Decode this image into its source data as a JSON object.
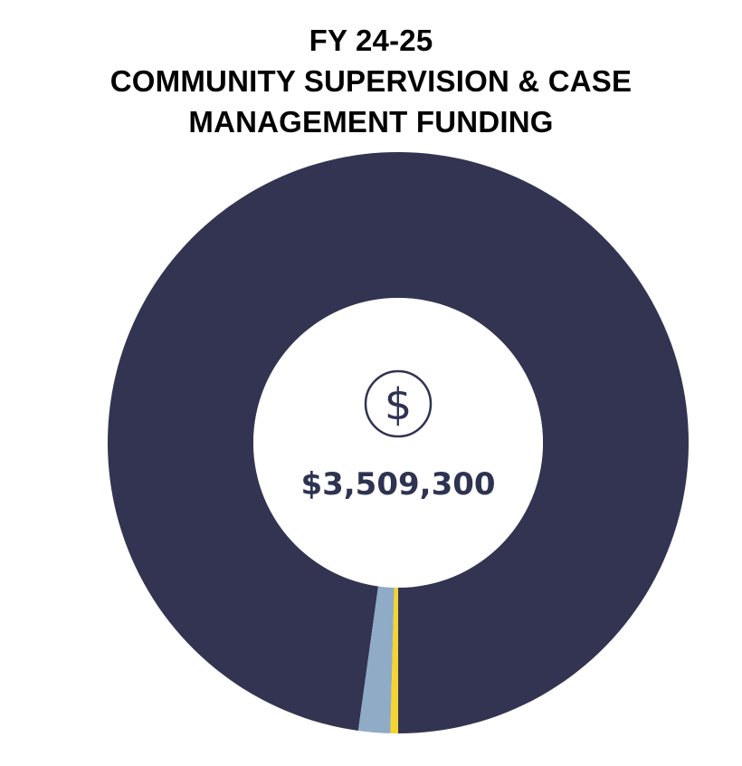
{
  "title": {
    "line1": "FY 24-25",
    "line2": "COMMUNITY SUPERVISION & CASE",
    "line3": "MANAGEMENT FUNDING"
  },
  "center": {
    "total_label": "$3,509,300",
    "icon": "dollar-circle-icon"
  },
  "colors": {
    "text_dark": "#2f3352",
    "title": "#000000"
  },
  "chart_data": {
    "type": "pie",
    "donut": true,
    "title": "FY 24-25 COMMUNITY SUPERVISION & CASE MANAGEMENT FUNDING",
    "total": 3509300,
    "slices": [
      {
        "value": 3432300,
        "color": "#333452"
      },
      {
        "value": 62000,
        "color": "#8fabc6"
      },
      {
        "value": 15000,
        "color": "#f5d331"
      }
    ],
    "start_angle_deg": 180,
    "direction": "counterclockwise",
    "legend": "none"
  }
}
